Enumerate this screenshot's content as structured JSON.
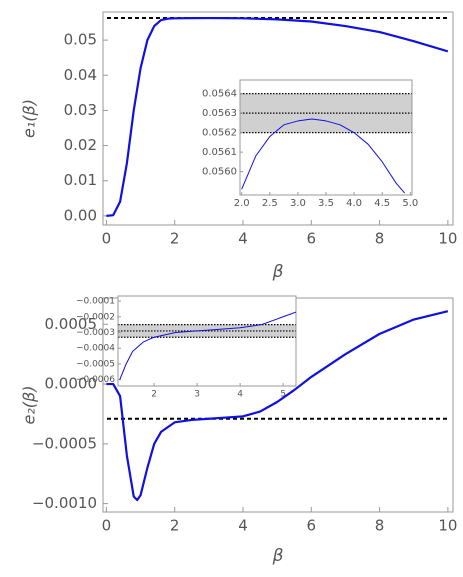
{
  "chart_data": [
    {
      "type": "line",
      "xlabel": "β",
      "ylabel": "e₁(β)",
      "color": "#1010e0",
      "x": [
        0,
        0.2,
        0.4,
        0.6,
        0.8,
        1.0,
        1.2,
        1.4,
        1.6,
        1.8,
        2,
        2.5,
        3,
        3.5,
        4,
        5,
        6,
        7,
        8,
        9,
        10
      ],
      "values": [
        0,
        0.0002,
        0.004,
        0.015,
        0.03,
        0.042,
        0.05,
        0.054,
        0.0557,
        0.0561,
        0.0562,
        0.05625,
        0.05627,
        0.05626,
        0.0562,
        0.0559,
        0.0553,
        0.054,
        0.0523,
        0.0497,
        0.0468
      ],
      "xlim": [
        -0.1,
        10.15
      ],
      "ylim": [
        -0.0026,
        0.058
      ],
      "xticks": [
        0,
        2,
        4,
        6,
        8,
        10
      ],
      "yticks": [
        {
          "value": 0,
          "label": "0.00"
        },
        0.01,
        0.02,
        0.03,
        0.04,
        0.05
      ],
      "reference_lines": [
        {
          "value": 0.0563,
          "style": "dashed"
        }
      ]
    },
    {
      "type": "line",
      "color": "#1010e0",
      "x": [
        2.0,
        2.25,
        2.5,
        2.75,
        3.0,
        3.25,
        3.5,
        3.75,
        4.0,
        4.25,
        4.5,
        4.75,
        4.9
      ],
      "values": [
        0.05591,
        0.05608,
        0.05618,
        0.05624,
        0.05626,
        0.05627,
        0.05626,
        0.05624,
        0.0562,
        0.05614,
        0.05605,
        0.05594,
        0.05589
      ],
      "xlim": [
        1.97,
        5.03
      ],
      "ylim": [
        0.05588,
        0.05647
      ],
      "xticks": [
        {
          "value": 2,
          "label": "2.0"
        },
        2.5,
        {
          "value": 3,
          "label": "3.0"
        },
        3.5,
        {
          "value": 4,
          "label": "4.0"
        },
        4.5,
        {
          "value": 5,
          "label": "5.0"
        }
      ],
      "yticks": [
        {
          "value": 0.056,
          "label": "0.0560"
        },
        0.0561,
        0.0562,
        0.0563,
        0.0564
      ],
      "band": [
        0.0562,
        0.0564
      ],
      "reference_lines": [
        {
          "value": 0.0562,
          "style": "dotted"
        },
        {
          "value": 0.0563,
          "style": "dotted"
        },
        {
          "value": 0.0564,
          "style": "dotted"
        }
      ]
    },
    {
      "type": "line",
      "xlabel": "β",
      "ylabel": "e₂(β)",
      "color": "#1010e0",
      "x": [
        0,
        0.2,
        0.4,
        0.6,
        0.8,
        0.9,
        1.0,
        1.2,
        1.4,
        1.6,
        2,
        2.5,
        3,
        3.5,
        4,
        4.5,
        5,
        5.5,
        6,
        7,
        8,
        9,
        10
      ],
      "values": [
        0,
        0,
        -0.0001,
        -0.0006,
        -0.00094,
        -0.00097,
        -0.00093,
        -0.0007,
        -0.0005,
        -0.0004,
        -0.00032,
        -0.0003,
        -0.00029,
        -0.00028,
        -0.00027,
        -0.00023,
        -0.00015,
        -5e-05,
        6e-05,
        0.00025,
        0.00042,
        0.00054,
        0.00061
      ],
      "xlim": [
        -0.1,
        10.15
      ],
      "ylim": [
        -0.00107,
        0.00072
      ],
      "xticks": [
        0,
        2,
        4,
        6,
        8,
        10
      ],
      "yticks": [
        {
          "value": -0.001,
          "label": "−0.0010"
        },
        {
          "value": -0.0005,
          "label": "−0.0005"
        },
        {
          "value": 0,
          "label": "0.0000"
        },
        0.0005
      ],
      "reference_lines": [
        {
          "value": -0.00029,
          "style": "dashed"
        }
      ]
    },
    {
      "type": "line",
      "color": "#1010e0",
      "x": [
        1.2,
        1.35,
        1.5,
        1.75,
        2,
        2.5,
        3,
        3.5,
        4,
        4.5,
        4.8,
        5,
        5.3
      ],
      "values": [
        -0.0006,
        -0.0005,
        -0.00042,
        -0.00036,
        -0.00033,
        -0.0003,
        -0.00029,
        -0.00028,
        -0.00027,
        -0.00025,
        -0.00022,
        -0.0002,
        -0.00017
      ],
      "xlim": [
        1.16,
        5.3
      ],
      "ylim": [
        -0.00064,
        -6.8e-05
      ],
      "xticks": [
        2,
        3,
        4,
        5
      ],
      "yticks": [
        {
          "value": -0.0006,
          "label": "−0.0006"
        },
        {
          "value": -0.0005,
          "label": "−0.0005"
        },
        {
          "value": -0.0004,
          "label": "−0.0004"
        },
        {
          "value": -0.0003,
          "label": "−0.0003"
        },
        {
          "value": -0.0002,
          "label": "−0.0002"
        },
        {
          "value": -0.0001,
          "label": "−0.0001"
        }
      ],
      "band": [
        -0.00033,
        -0.00025
      ],
      "reference_lines": [
        {
          "value": -0.00033,
          "style": "dotted"
        },
        {
          "value": -0.00029,
          "style": "dotted"
        },
        {
          "value": -0.00025,
          "style": "dotted"
        }
      ]
    }
  ]
}
